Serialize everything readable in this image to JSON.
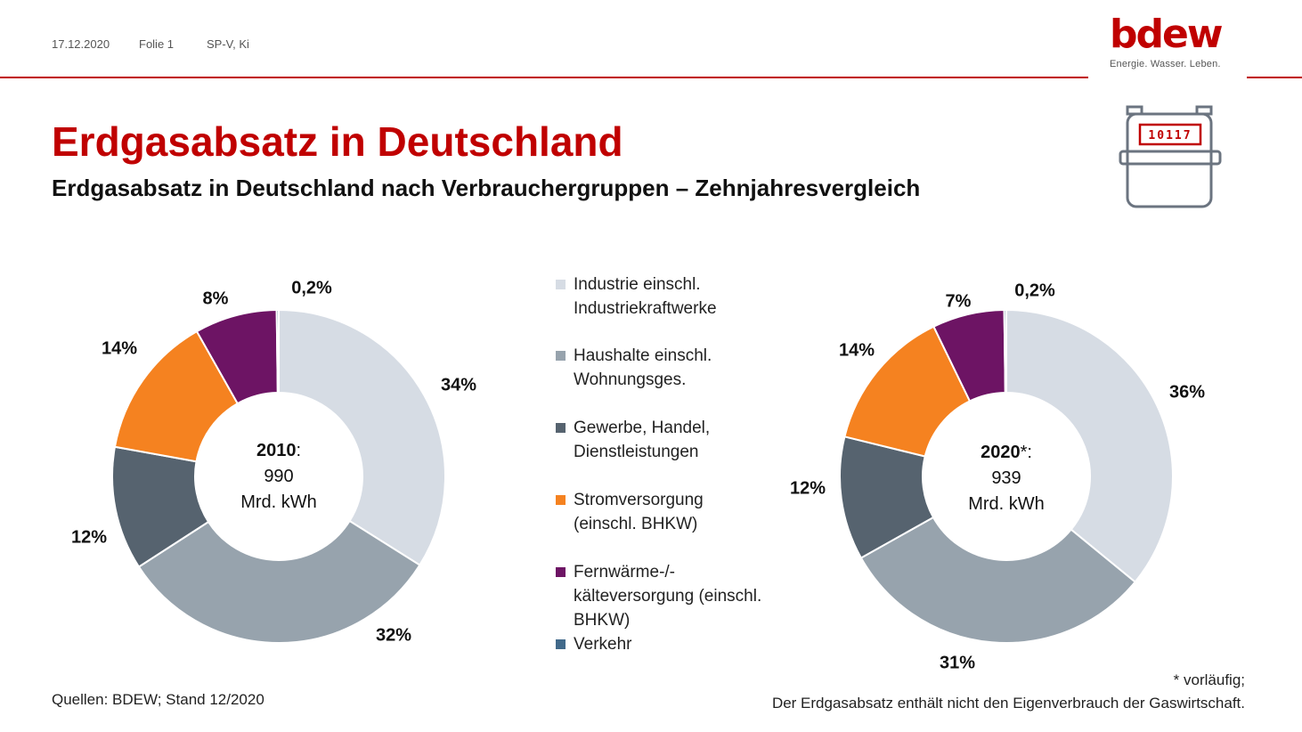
{
  "header": {
    "date": "17.12.2020",
    "slide": "Folie 1",
    "author": "SP-V, Ki"
  },
  "logo": {
    "word": "bdew",
    "tagline": "Energie. Wasser. Leben.",
    "color": "#c00000"
  },
  "title": "Erdgasabsatz in Deutschland",
  "subtitle": "Erdgasabsatz in Deutschland nach Verbrauchergruppen – Zehnjahresvergleich",
  "meter": {
    "reading": "10117"
  },
  "chart_data": [
    {
      "type": "pie",
      "center": {
        "year": "2010",
        "suffix": ":",
        "value": "990",
        "unit": "Mrd. kWh"
      },
      "slices": [
        {
          "category": "Industrie einschl. Industriekraftwerke",
          "value": 34,
          "label": "34%"
        },
        {
          "category": "Haushalte einschl. Wohnungsges.",
          "value": 32,
          "label": "32%"
        },
        {
          "category": "Gewerbe, Handel, Dienstleistungen",
          "value": 12,
          "label": "12%"
        },
        {
          "category": "Stromversorgung (einschl. BHKW)",
          "value": 14,
          "label": "14%"
        },
        {
          "category": "Fernwärme-/-kälteversorgung (einschl. BHKW)",
          "value": 8,
          "label": "8%"
        },
        {
          "category": "Verkehr",
          "value": 0.2,
          "label": "0,2%"
        }
      ]
    },
    {
      "type": "pie",
      "center": {
        "year": "2020",
        "suffix": "*:",
        "value": "939",
        "unit": "Mrd. kWh"
      },
      "slices": [
        {
          "category": "Industrie einschl. Industriekraftwerke",
          "value": 36,
          "label": "36%"
        },
        {
          "category": "Haushalte einschl. Wohnungsges.",
          "value": 31,
          "label": "31%"
        },
        {
          "category": "Gewerbe, Handel, Dienstleistungen",
          "value": 12,
          "label": "12%"
        },
        {
          "category": "Stromversorgung (einschl. BHKW)",
          "value": 14,
          "label": "14%"
        },
        {
          "category": "Fernwärme-/-kälteversorgung (einschl. BHKW)",
          "value": 7,
          "label": "7%"
        },
        {
          "category": "Verkehr",
          "value": 0.2,
          "label": "0,2%"
        }
      ]
    }
  ],
  "legend": [
    {
      "lines": [
        "Industrie einschl.",
        "Industriekraftwerke"
      ],
      "color": "#d6dce4"
    },
    {
      "lines": [
        "Haushalte einschl.",
        "Wohnungsges."
      ],
      "color": "#97a3ad"
    },
    {
      "lines": [
        "Gewerbe, Handel,",
        "Dienstleistungen"
      ],
      "color": "#56636f"
    },
    {
      "lines": [
        "Stromversorgung",
        "(einschl. BHKW)"
      ],
      "color": "#f58220"
    },
    {
      "lines": [
        "Fernwärme-/-",
        "kälteversorgung (einschl.",
        "BHKW)"
      ],
      "color": "#6d1464"
    },
    {
      "lines": [
        "Verkehr"
      ],
      "color": "#41698a"
    }
  ],
  "footer": {
    "sources": "Quellen: BDEW; Stand 12/2020",
    "note1": "* vorläufig;",
    "note2": "Der Erdgasabsatz enthält nicht den Eigenverbrauch der Gaswirtschaft."
  }
}
